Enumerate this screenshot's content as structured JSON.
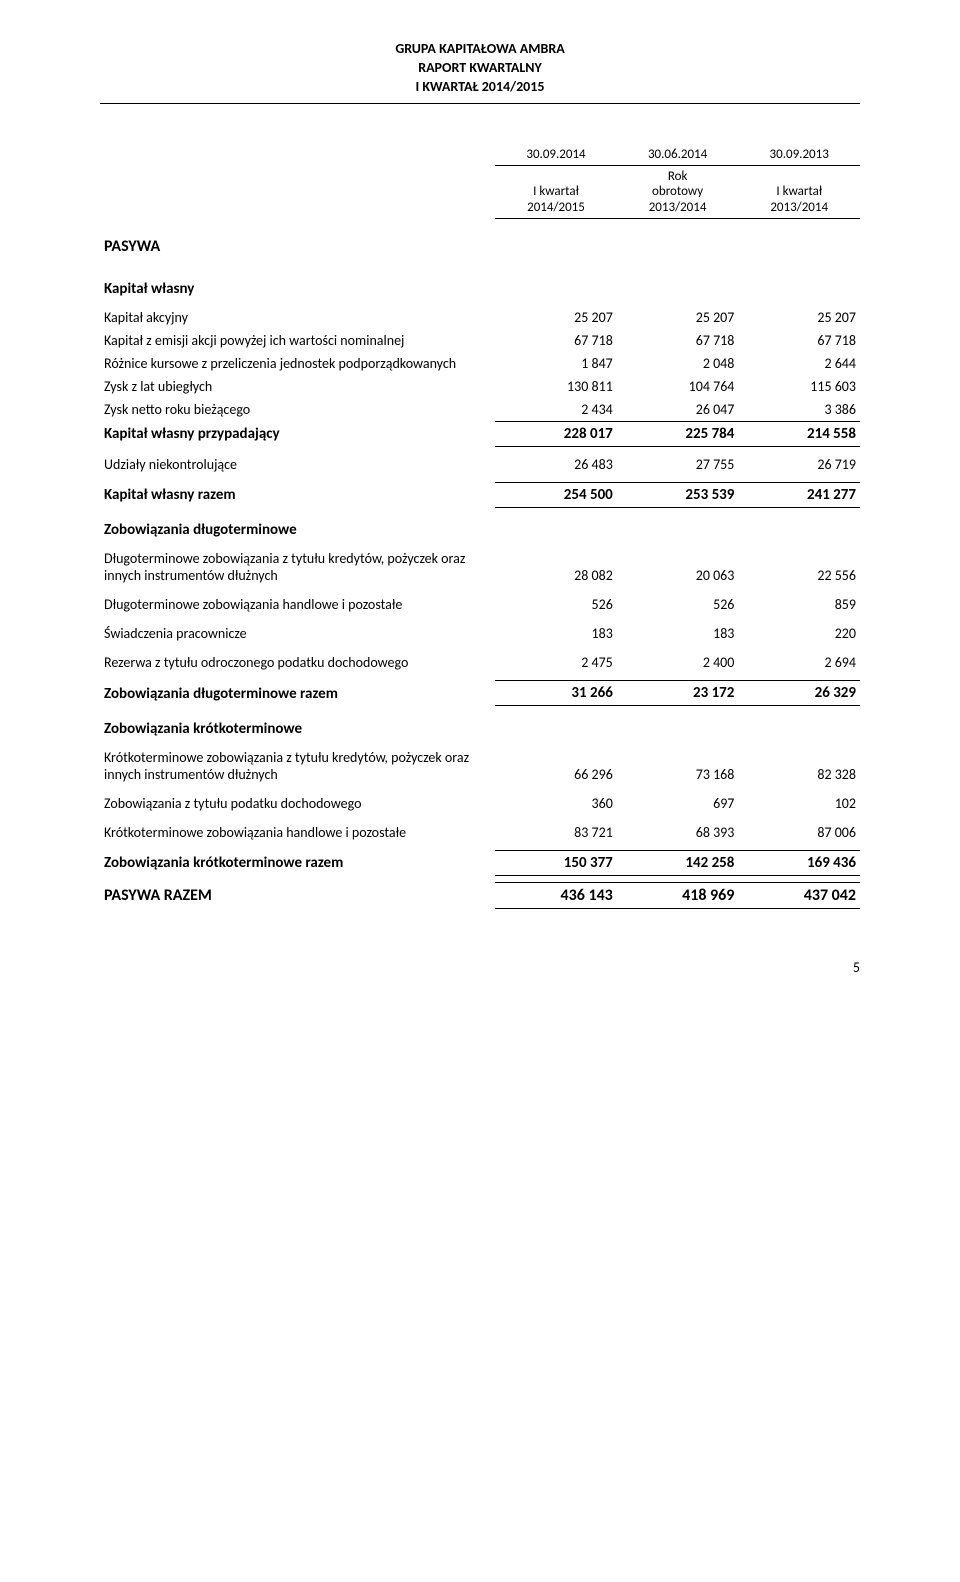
{
  "header": {
    "line1": "GRUPA KAPITAŁOWA AMBRA",
    "line2": "RAPORT KWARTALNY",
    "line3": "I KWARTAŁ 2014/2015"
  },
  "columns": {
    "dates": [
      "30.09.2014",
      "30.06.2014",
      "30.09.2013"
    ],
    "subs": [
      [
        "I kwartał",
        "2014/2015"
      ],
      [
        "Rok",
        "obrotowy",
        "2013/2014"
      ],
      [
        "I kwartał",
        "2013/2014"
      ]
    ]
  },
  "s_pasywa": "PASYWA",
  "s_equity": "Kapitał własny",
  "rows_equity": [
    {
      "label": "Kapitał akcyjny",
      "v": [
        "25 207",
        "25 207",
        "25 207"
      ]
    },
    {
      "label": "Kapitał z emisji akcji powyżej ich wartości nominalnej",
      "v": [
        "67 718",
        "67 718",
        "67 718"
      ]
    },
    {
      "label": "Różnice kursowe z przeliczenia jednostek podporządkowanych",
      "v": [
        "1 847",
        "2 048",
        "2 644"
      ]
    },
    {
      "label": "Zysk z lat ubiegłych",
      "v": [
        "130 811",
        "104 764",
        "115 603"
      ]
    },
    {
      "label": "Zysk netto roku bieżącego",
      "v": [
        "2 434",
        "26 047",
        "3 386"
      ],
      "bottom": true
    }
  ],
  "equity_attr": {
    "label": "Kapitał własny przypadający",
    "v": [
      "228 017",
      "225 784",
      "214 558"
    ]
  },
  "nci": {
    "label": "Udziały niekontrolujące",
    "v": [
      "26 483",
      "27 755",
      "26 719"
    ]
  },
  "equity_total": {
    "label": "Kapitał własny razem",
    "v": [
      "254 500",
      "253 539",
      "241 277"
    ]
  },
  "s_long": "Zobowiązania długoterminowe",
  "rows_long": [
    {
      "label": "Długoterminowe zobowiązania z tytułu kredytów, pożyczek oraz innych instrumentów dłużnych",
      "v": [
        "28 082",
        "20 063",
        "22 556"
      ]
    },
    {
      "label": "Długoterminowe zobowiązania handlowe i pozostałe",
      "v": [
        "526",
        "526",
        "859"
      ]
    },
    {
      "label": "Świadczenia pracownicze",
      "v": [
        "183",
        "183",
        "220"
      ]
    },
    {
      "label": "Rezerwa z tytułu odroczonego podatku dochodowego",
      "v": [
        "2 475",
        "2 400",
        "2 694"
      ]
    }
  ],
  "long_total": {
    "label": "Zobowiązania długoterminowe razem",
    "v": [
      "31 266",
      "23 172",
      "26 329"
    ]
  },
  "s_short": "Zobowiązania krótkoterminowe",
  "rows_short": [
    {
      "label": "Krótkoterminowe zobowiązania z tytułu kredytów, pożyczek oraz innych instrumentów dłużnych",
      "v": [
        "66 296",
        "73 168",
        "82 328"
      ]
    },
    {
      "label": "Zobowiązania z tytułu podatku dochodowego",
      "v": [
        "360",
        "697",
        "102"
      ]
    },
    {
      "label": "Krótkoterminowe zobowiązania handlowe i pozostałe",
      "v": [
        "83 721",
        "68 393",
        "87 006"
      ]
    }
  ],
  "short_total": {
    "label": "Zobowiązania krótkoterminowe razem",
    "v": [
      "150 377",
      "142 258",
      "169 436"
    ]
  },
  "pasywa_razem": {
    "label": "PASYWA RAZEM",
    "v": [
      "436 143",
      "418 969",
      "437 042"
    ]
  },
  "page_number": "5"
}
